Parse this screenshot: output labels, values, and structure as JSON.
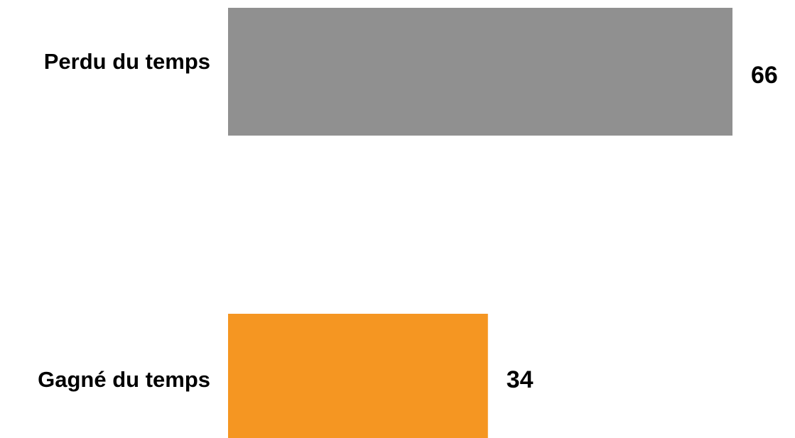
{
  "chart_data": {
    "type": "bar",
    "orientation": "horizontal",
    "categories": [
      "Perdu du temps",
      "Gagné du temps"
    ],
    "values": [
      66,
      34
    ],
    "colors": [
      "#909090",
      "#F59622"
    ],
    "xlim": [
      0,
      66
    ],
    "title": "",
    "xlabel": "",
    "ylabel": "",
    "grid": false,
    "legend": "none",
    "data_labels": true
  }
}
